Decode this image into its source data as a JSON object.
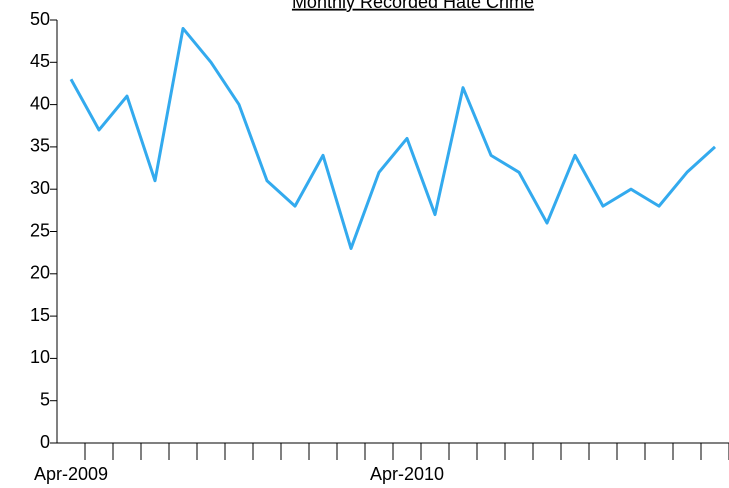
{
  "chart_data": {
    "type": "line",
    "title": "Monthly Recorded Hate Crime",
    "categories": [
      "Apr-2009",
      null,
      null,
      null,
      null,
      null,
      null,
      null,
      null,
      null,
      null,
      null,
      "Apr-2010",
      null,
      null,
      null,
      null,
      null,
      null,
      null,
      null,
      null,
      null,
      null
    ],
    "values": [
      43,
      37,
      41,
      31,
      49,
      45,
      40,
      31,
      28,
      34,
      23,
      32,
      36,
      27,
      42,
      34,
      32,
      26,
      34,
      28,
      30,
      28,
      32,
      35
    ],
    "color": "#33aaee",
    "ylim": [
      0,
      50
    ],
    "yticks": [
      0,
      5,
      10,
      15,
      20,
      25,
      30,
      35,
      40,
      45,
      50
    ]
  }
}
